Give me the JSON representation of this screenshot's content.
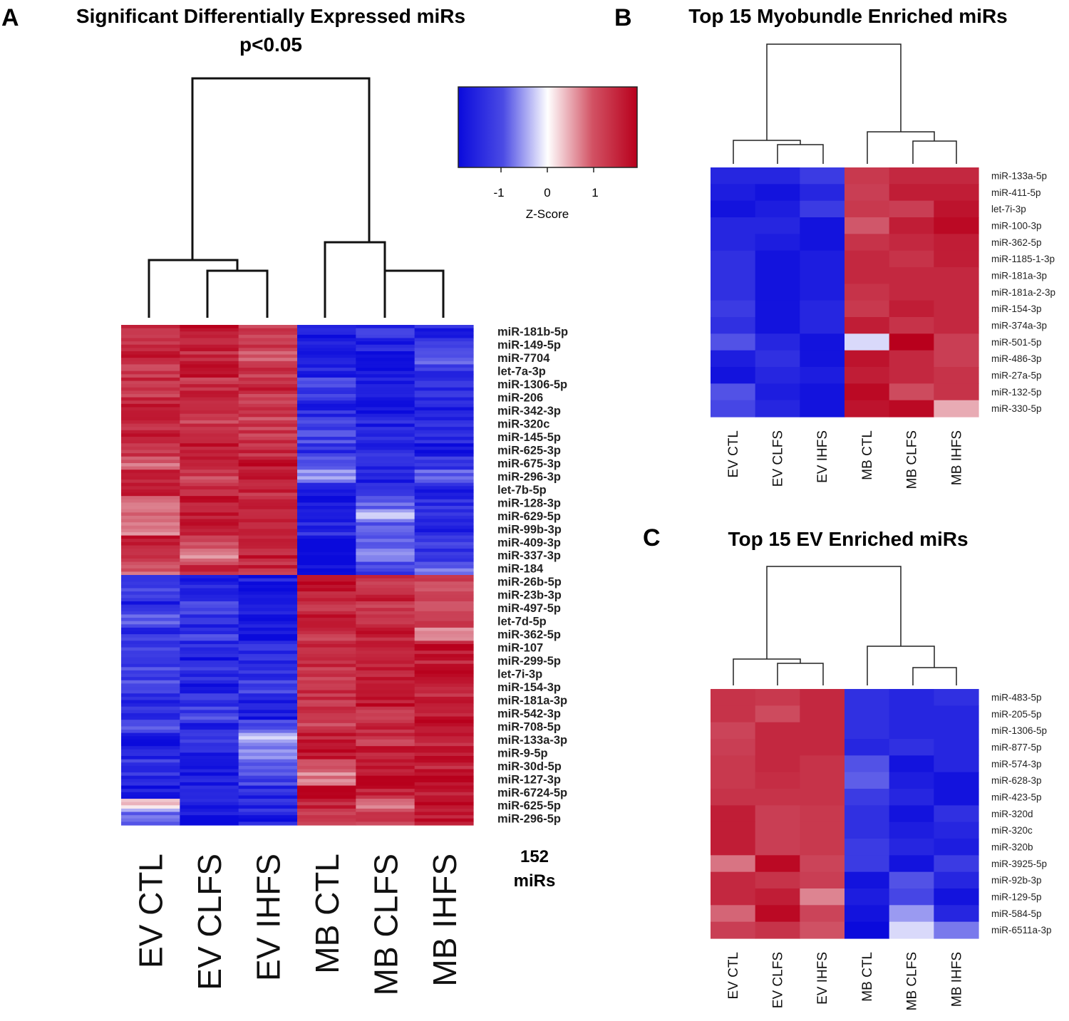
{
  "panel_letters": {
    "a": "A",
    "b": "B",
    "c": "C"
  },
  "colorbar": {
    "label": "Z-Score",
    "ticks": [
      "-1",
      "0",
      "1"
    ],
    "colors": {
      "low": "#0a0adc",
      "mid": "#ffffff",
      "high": "#b8001c"
    }
  },
  "chart_data": [
    {
      "type": "heatmap",
      "panel": "A",
      "title": "Significant Differentially Expressed miRs",
      "subtitle": "p<0.05",
      "columns": [
        "EV CTL",
        "EV CLFS",
        "EV IHFS",
        "MB CTL",
        "MB CLFS",
        "MB IHFS"
      ],
      "row_count_label": "152",
      "row_count_unit": "miRs",
      "row_labels": [
        "miR-181b-5p",
        "miR-149-5p",
        "miR-7704",
        "let-7a-3p",
        "miR-1306-5p",
        "miR-206",
        "miR-342-3p",
        "miR-320c",
        "miR-145-5p",
        "miR-625-3p",
        "miR-675-3p",
        "miR-296-3p",
        "let-7b-5p",
        "miR-128-3p",
        "miR-629-5p",
        "miR-99b-3p",
        "miR-409-3p",
        "miR-337-3p",
        "miR-184",
        "miR-26b-5p",
        "miR-23b-3p",
        "miR-497-5p",
        "let-7d-5p",
        "miR-362-5p",
        "miR-107",
        "miR-299-5p",
        "let-7i-3p",
        "miR-154-3p",
        "miR-181a-3p",
        "miR-542-3p",
        "miR-708-5p",
        "miR-133a-3p",
        "miR-9-5p",
        "miR-30d-5p",
        "miR-127-3p",
        "miR-6724-5p",
        "miR-625-5p",
        "miR-296-5p"
      ],
      "values": [
        [
          1.0,
          1.3,
          1.0,
          -1.3,
          -1.1,
          -1.2
        ],
        [
          1.1,
          1.2,
          0.9,
          -1.4,
          -1.2,
          -1.0
        ],
        [
          1.2,
          1.1,
          0.7,
          -1.3,
          -1.4,
          -0.6
        ],
        [
          1.0,
          1.2,
          1.0,
          -1.2,
          -1.4,
          -1.1
        ],
        [
          1.1,
          1.0,
          1.1,
          -1.0,
          -1.3,
          -1.2
        ],
        [
          1.0,
          1.1,
          1.0,
          -1.1,
          -1.4,
          -1.1
        ],
        [
          1.2,
          1.0,
          1.0,
          -1.2,
          -1.3,
          -1.2
        ],
        [
          1.1,
          0.9,
          0.9,
          -1.0,
          -1.2,
          -1.1
        ],
        [
          1.2,
          1.1,
          1.0,
          -0.9,
          -1.3,
          -1.2
        ],
        [
          1.0,
          1.2,
          1.1,
          -1.1,
          -1.2,
          -1.3
        ],
        [
          0.6,
          1.1,
          1.3,
          -0.8,
          -1.2,
          -1.1
        ],
        [
          1.3,
          0.9,
          1.2,
          -0.3,
          -1.3,
          -0.7
        ],
        [
          1.3,
          1.2,
          1.1,
          -1.4,
          -1.1,
          -1.2
        ],
        [
          0.4,
          1.3,
          1.2,
          -1.3,
          -0.6,
          -1.1
        ],
        [
          0.7,
          1.2,
          1.3,
          -1.4,
          -0.3,
          -1.2
        ],
        [
          0.5,
          1.3,
          1.1,
          -1.2,
          -0.8,
          -1.3
        ],
        [
          1.2,
          0.9,
          1.0,
          -1.5,
          -0.6,
          -1.0
        ],
        [
          1.1,
          0.4,
          1.2,
          -1.5,
          -0.4,
          -1.2
        ],
        [
          0.6,
          1.0,
          1.1,
          -1.5,
          -0.9,
          -0.6
        ],
        [
          -1.0,
          -1.2,
          -1.3,
          1.4,
          1.0,
          0.9
        ],
        [
          -0.9,
          -1.1,
          -1.3,
          1.2,
          1.1,
          0.8
        ],
        [
          -1.2,
          -1.0,
          -1.4,
          1.1,
          1.0,
          0.9
        ],
        [
          -0.8,
          -1.2,
          -1.3,
          1.2,
          1.1,
          0.9
        ],
        [
          -1.1,
          -1.0,
          -1.5,
          1.0,
          1.2,
          0.2
        ],
        [
          -1.0,
          -1.2,
          -1.2,
          1.1,
          1.2,
          1.3
        ],
        [
          -1.2,
          -1.3,
          -1.1,
          1.2,
          1.1,
          1.2
        ],
        [
          -0.9,
          -1.1,
          -1.2,
          0.9,
          1.2,
          1.3
        ],
        [
          -0.8,
          -1.4,
          -1.0,
          1.1,
          1.1,
          1.2
        ],
        [
          -1.1,
          -1.0,
          -1.2,
          1.0,
          1.3,
          1.1
        ],
        [
          -1.2,
          -0.9,
          -1.3,
          1.1,
          1.0,
          1.2
        ],
        [
          -0.9,
          -1.2,
          -0.8,
          0.9,
          1.1,
          1.3
        ],
        [
          -1.5,
          -1.1,
          -0.2,
          1.2,
          1.0,
          1.1
        ],
        [
          -1.2,
          -1.3,
          -0.5,
          1.3,
          1.2,
          1.2
        ],
        [
          -1.0,
          -1.2,
          -0.7,
          0.6,
          1.3,
          1.2
        ],
        [
          -1.1,
          -1.3,
          -0.9,
          0.4,
          1.4,
          1.3
        ],
        [
          -1.3,
          -1.1,
          -1.2,
          1.3,
          1.2,
          1.2
        ],
        [
          0.0,
          -1.3,
          -1.2,
          1.2,
          0.6,
          1.3
        ],
        [
          -0.6,
          -1.4,
          -1.3,
          1.0,
          0.8,
          1.3
        ]
      ]
    },
    {
      "type": "heatmap",
      "panel": "B",
      "title": "Top 15 Myobundle Enriched miRs",
      "columns": [
        "EV CTL",
        "EV CLFS",
        "EV IHFS",
        "MB CTL",
        "MB CLFS",
        "MB IHFS"
      ],
      "row_labels": [
        "miR-133a-5p",
        "miR-411-5p",
        "let-7i-3p",
        "miR-100-3p",
        "miR-362-5p",
        "miR-1185-1-3p",
        "miR-181a-3p",
        "miR-181a-2-3p",
        "miR-154-3p",
        "miR-374a-3p",
        "miR-501-5p",
        "miR-486-3p",
        "miR-27a-5p",
        "miR-132-5p",
        "miR-330-5p"
      ],
      "values": [
        [
          -1.2,
          -1.2,
          -1.0,
          0.95,
          1.1,
          1.1
        ],
        [
          -1.3,
          -1.4,
          -1.2,
          0.9,
          1.2,
          1.2
        ],
        [
          -1.4,
          -1.3,
          -1.0,
          0.95,
          0.9,
          1.3
        ],
        [
          -1.2,
          -1.2,
          -1.4,
          0.7,
          1.2,
          1.4
        ],
        [
          -1.2,
          -1.3,
          -1.4,
          1.0,
          1.1,
          1.2
        ],
        [
          -1.1,
          -1.4,
          -1.3,
          1.1,
          1.0,
          1.2
        ],
        [
          -1.1,
          -1.4,
          -1.3,
          1.1,
          1.1,
          1.1
        ],
        [
          -1.1,
          -1.4,
          -1.3,
          1.0,
          1.1,
          1.1
        ],
        [
          -1.0,
          -1.4,
          -1.2,
          0.95,
          1.2,
          1.1
        ],
        [
          -1.1,
          -1.4,
          -1.2,
          1.2,
          1.0,
          1.1
        ],
        [
          -0.8,
          -1.2,
          -1.4,
          -0.05,
          1.5,
          0.9
        ],
        [
          -1.3,
          -1.1,
          -1.4,
          1.3,
          1.1,
          0.9
        ],
        [
          -1.4,
          -1.2,
          -1.3,
          1.2,
          1.1,
          1.0
        ],
        [
          -0.8,
          -1.3,
          -1.4,
          1.4,
          0.8,
          1.0
        ],
        [
          -0.9,
          -1.2,
          -1.4,
          1.3,
          1.4,
          0.2
        ]
      ]
    },
    {
      "type": "heatmap",
      "panel": "C",
      "title": "Top 15 EV Enriched miRs",
      "columns": [
        "EV CTL",
        "EV CLFS",
        "EV IHFS",
        "MB CTL",
        "MB CLFS",
        "MB IHFS"
      ],
      "row_labels": [
        "miR-483-5p",
        "miR-205-5p",
        "miR-1306-5p",
        "miR-877-5p",
        "miR-574-3p",
        "miR-628-3p",
        "miR-423-5p",
        "miR-320d",
        "miR-320c",
        "miR-320b",
        "miR-3925-5p",
        "miR-92b-3p",
        "miR-129-5p",
        "miR-584-5p",
        "miR-6511a-3p"
      ],
      "values": [
        [
          1.0,
          0.95,
          1.1,
          -1.1,
          -1.2,
          -1.1
        ],
        [
          1.0,
          0.8,
          1.1,
          -1.1,
          -1.2,
          -1.2
        ],
        [
          0.85,
          1.1,
          1.1,
          -1.1,
          -1.2,
          -1.2
        ],
        [
          0.9,
          1.1,
          1.1,
          -1.2,
          -1.1,
          -1.2
        ],
        [
          0.95,
          1.1,
          1.0,
          -0.8,
          -1.4,
          -1.2
        ],
        [
          0.95,
          1.05,
          1.0,
          -0.7,
          -1.3,
          -1.4
        ],
        [
          1.0,
          1.0,
          1.0,
          -1.0,
          -1.2,
          -1.4
        ],
        [
          1.2,
          0.9,
          0.95,
          -1.1,
          -1.4,
          -1.1
        ],
        [
          1.2,
          0.9,
          0.95,
          -1.1,
          -1.3,
          -1.2
        ],
        [
          1.2,
          0.9,
          0.95,
          -1.0,
          -1.2,
          -1.3
        ],
        [
          0.5,
          1.4,
          0.85,
          -1.0,
          -1.4,
          -1.0
        ],
        [
          1.1,
          1.0,
          0.9,
          -1.4,
          -0.8,
          -1.2
        ],
        [
          1.1,
          1.2,
          0.4,
          -1.3,
          -0.9,
          -1.4
        ],
        [
          0.6,
          1.4,
          0.85,
          -1.4,
          -0.3,
          -1.2
        ],
        [
          0.9,
          1.0,
          0.75,
          -1.5,
          -0.05,
          -0.5
        ]
      ]
    }
  ]
}
